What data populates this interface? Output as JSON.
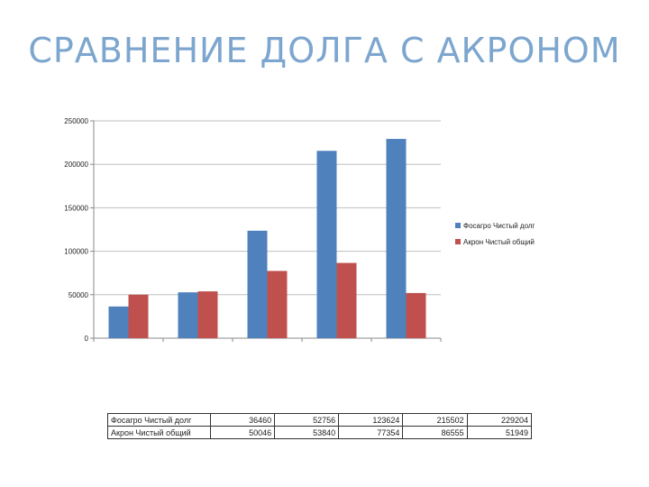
{
  "title": "СРАВНЕНИЕ ДОЛГА С АКРОНОМ",
  "colors": {
    "fosagro": "#4f81bd",
    "akron": "#c0504d",
    "title": "#7da6cf"
  },
  "chart_data": {
    "type": "bar",
    "title": "",
    "xlabel": "",
    "ylabel": "",
    "ylim": [
      0,
      250000
    ],
    "yticks": [
      "250000",
      "200000",
      "150000",
      "100000",
      "50000",
      "0"
    ],
    "categories": [
      "",
      "",
      "",
      "",
      ""
    ],
    "grid": true,
    "legend_position": "right",
    "series": [
      {
        "name": "Фосагро Чистый долг",
        "values": [
          36460,
          52756,
          123624,
          215502,
          229204
        ]
      },
      {
        "name": "Акрон Чистый общий",
        "values": [
          50046,
          53840,
          77354,
          86555,
          51949
        ]
      }
    ]
  },
  "table": {
    "rows": [
      {
        "label": "Фосагро Чистый долг",
        "values": [
          "36460",
          "52756",
          "123624",
          "215502",
          "229204"
        ]
      },
      {
        "label": "Акрон Чистый общий",
        "values": [
          "50046",
          "53840",
          "77354",
          "86555",
          "51949"
        ]
      }
    ]
  }
}
